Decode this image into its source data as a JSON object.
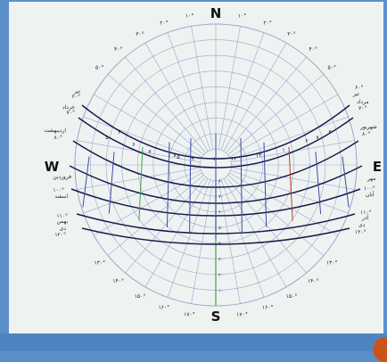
{
  "directions": {
    "north": "N",
    "south": "S",
    "east": "E",
    "west": "W"
  },
  "azimuth_labels": [
    "۱۰°",
    "۲۰°",
    "۳۰°",
    "۴۰°",
    "۵۰°",
    "۶۰°",
    "۷۰°",
    "۸۰°",
    "۱۰۰°",
    "۱۱۰°",
    "۱۲۰°",
    "۱۳۰°",
    "۱۴۰°",
    "۱۵۰°",
    "۱۶۰°",
    "۱۷۰°",
    "۱۷۰°",
    "۱۶۰°",
    "۱۵۰°",
    "۱۴۰°",
    "۱۳۰°",
    "۱۲۰°",
    "۱۱۰°",
    "۱۰۰°",
    "۸۰°",
    "۷۰°",
    "۶۰°",
    "۵۰°",
    "۴۰°",
    "۳۰°",
    "۲۰°",
    "۱۰°"
  ],
  "altitude_labels": [
    "۸۰",
    "۷۰",
    "۶۰",
    "۵۰",
    "۴۰",
    "۳۰",
    "۲۰",
    "۱۰"
  ],
  "hour_labels": [
    "۵",
    "۶",
    "۷",
    "۸",
    "۹",
    "۱۰",
    "۱۱",
    "۱۲",
    "۱",
    "۲",
    "۳",
    "۴",
    "۵",
    "۷"
  ],
  "month_labels_left": [
    {
      "name": "تیر",
      "deg": "۶۰°"
    },
    {
      "name": "خرداد",
      "deg": "۷۰°"
    },
    {
      "name": "اردیبهشت",
      "deg": "۸۰°"
    },
    {
      "name": "فروردین",
      "deg": ""
    },
    {
      "name": "اسفند",
      "deg": "۱۰۰°"
    },
    {
      "name": "بهمن",
      "deg": "۱۱۰°"
    },
    {
      "name": "دی",
      "deg": "۱۲۰°"
    }
  ],
  "month_labels_right": [
    {
      "name": "تیر",
      "deg": "۶۰°"
    },
    {
      "name": "مرداد",
      "deg": "۷۰°"
    },
    {
      "name": "شهریور",
      "deg": "۸۰°"
    },
    {
      "name": "مهر",
      "deg": ""
    },
    {
      "name": "آبان",
      "deg": "۱۰۰°"
    },
    {
      "name": "آذر",
      "deg": "۱۱۰°"
    },
    {
      "name": "دی",
      "deg": "۱۲۰°"
    }
  ],
  "colors": {
    "grid": "#9aa7c8",
    "grid_green": "#8fc49a",
    "curve": "#1b1b4a",
    "hour_line": "#3e4aa0",
    "accent_green": "#3fa34a",
    "accent_red": "#c0392b"
  }
}
